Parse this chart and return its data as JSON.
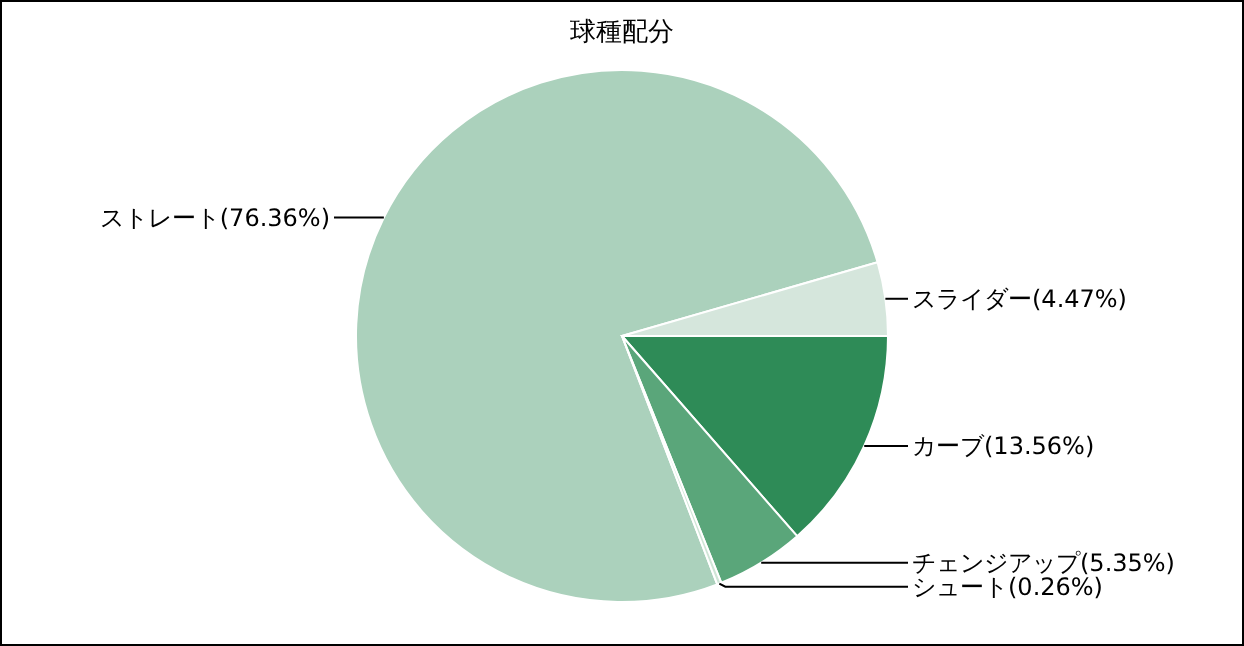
{
  "chart_data": {
    "type": "pie",
    "title": "球種配分",
    "categories": [
      "ストレート",
      "スライダー",
      "カーブ",
      "チェンジアップ",
      "シュート"
    ],
    "values": [
      76.36,
      4.47,
      13.56,
      5.35,
      0.26
    ],
    "value_labels": [
      "(76.36%)",
      "(4.47%)",
      "(13.56%)",
      "(5.35%)",
      "(0.26%)"
    ],
    "colors": [
      "#abd1bc",
      "#d5e6dc",
      "#2e8b57",
      "#5aa67a",
      "#cfe5d6"
    ],
    "legend": false
  }
}
